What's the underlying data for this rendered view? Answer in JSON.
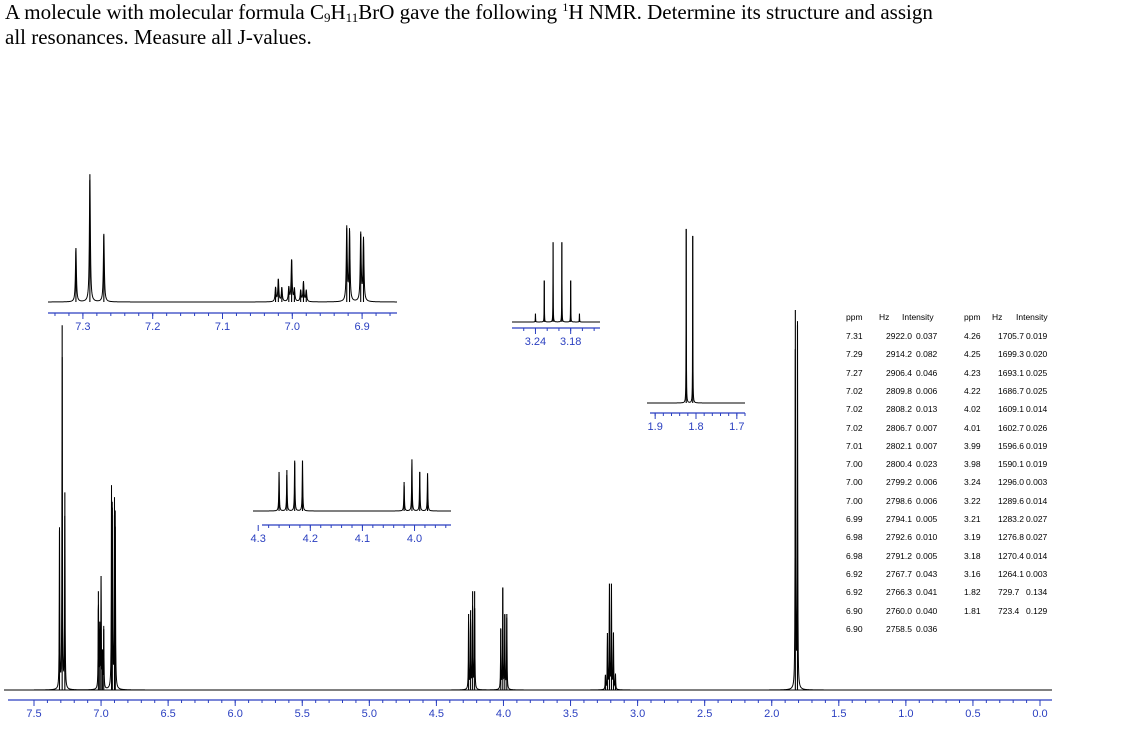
{
  "question": {
    "pre": "A molecule with molecular formula C",
    "c": "9",
    "h_label": "H",
    "h": "11",
    "tail": "BrO gave the following ",
    "sup": "1",
    "nmr": "H NMR.  Determine its structure and assign",
    "line2": "all resonances.  Measure all J-values."
  },
  "peak_table": {
    "headers": [
      "ppm",
      "Hz",
      "Intensity"
    ],
    "left": [
      [
        "7.31",
        "2922.0",
        "0.037"
      ],
      [
        "7.29",
        "2914.2",
        "0.082"
      ],
      [
        "7.27",
        "2906.4",
        "0.046"
      ],
      [
        "7.02",
        "2809.8",
        "0.006"
      ],
      [
        "7.02",
        "2808.2",
        "0.013"
      ],
      [
        "7.02",
        "2806.7",
        "0.007"
      ],
      [
        "7.01",
        "2802.1",
        "0.007"
      ],
      [
        "7.00",
        "2800.4",
        "0.023"
      ],
      [
        "7.00",
        "2799.2",
        "0.006"
      ],
      [
        "7.00",
        "2798.6",
        "0.006"
      ],
      [
        "6.99",
        "2794.1",
        "0.005"
      ],
      [
        "6.98",
        "2792.6",
        "0.010"
      ],
      [
        "6.98",
        "2791.2",
        "0.005"
      ],
      [
        "6.92",
        "2767.7",
        "0.043"
      ],
      [
        "6.92",
        "2766.3",
        "0.041"
      ],
      [
        "6.90",
        "2760.0",
        "0.040"
      ],
      [
        "6.90",
        "2758.5",
        "0.036"
      ]
    ],
    "right": [
      [
        "4.26",
        "1705.7",
        "0.019"
      ],
      [
        "4.25",
        "1699.3",
        "0.020"
      ],
      [
        "4.23",
        "1693.1",
        "0.025"
      ],
      [
        "4.22",
        "1686.7",
        "0.025"
      ],
      [
        "4.02",
        "1609.1",
        "0.014"
      ],
      [
        "4.01",
        "1602.7",
        "0.026"
      ],
      [
        "3.99",
        "1596.6",
        "0.019"
      ],
      [
        "3.98",
        "1590.1",
        "0.019"
      ],
      [
        "3.24",
        "1296.0",
        "0.003"
      ],
      [
        "3.22",
        "1289.6",
        "0.014"
      ],
      [
        "3.21",
        "1283.2",
        "0.027"
      ],
      [
        "3.19",
        "1276.8",
        "0.027"
      ],
      [
        "3.18",
        "1270.4",
        "0.014"
      ],
      [
        "3.16",
        "1264.1",
        "0.003"
      ],
      [
        "1.82",
        "729.7",
        "0.134"
      ],
      [
        "1.81",
        "723.4",
        "0.129"
      ]
    ]
  },
  "chart_data": {
    "type": "line",
    "main": {
      "xlim": [
        7.5,
        0.0
      ],
      "ticks": [
        "7.5",
        "7.0",
        "6.5",
        "6.0",
        "5.5",
        "5.0",
        "4.5",
        "4.0",
        "3.5",
        "3.0",
        "2.5",
        "2.0",
        "1.5",
        "1.0",
        "0.5",
        "0.0"
      ],
      "peaks": [
        {
          "ppm": 7.31,
          "h": 0.42
        },
        {
          "ppm": 7.29,
          "h": 0.96
        },
        {
          "ppm": 7.27,
          "h": 0.52
        },
        {
          "ppm": 7.02,
          "h": 0.26
        },
        {
          "ppm": 7.01,
          "h": 0.16
        },
        {
          "ppm": 7.0,
          "h": 0.3
        },
        {
          "ppm": 6.99,
          "h": 0.1
        },
        {
          "ppm": 6.98,
          "h": 0.16
        },
        {
          "ppm": 6.922,
          "h": 0.5
        },
        {
          "ppm": 6.916,
          "h": 0.48
        },
        {
          "ppm": 6.9,
          "h": 0.46
        },
        {
          "ppm": 6.894,
          "h": 0.43
        },
        {
          "ppm": 4.26,
          "h": 0.2
        },
        {
          "ppm": 4.245,
          "h": 0.21
        },
        {
          "ppm": 4.23,
          "h": 0.26
        },
        {
          "ppm": 4.215,
          "h": 0.26
        },
        {
          "ppm": 4.02,
          "h": 0.16
        },
        {
          "ppm": 4.005,
          "h": 0.27
        },
        {
          "ppm": 3.99,
          "h": 0.2
        },
        {
          "ppm": 3.975,
          "h": 0.2
        },
        {
          "ppm": 3.24,
          "h": 0.04
        },
        {
          "ppm": 3.225,
          "h": 0.15
        },
        {
          "ppm": 3.21,
          "h": 0.28
        },
        {
          "ppm": 3.195,
          "h": 0.28
        },
        {
          "ppm": 3.18,
          "h": 0.15
        },
        {
          "ppm": 3.165,
          "h": 0.04
        },
        {
          "ppm": 1.824,
          "h": 1.0
        },
        {
          "ppm": 1.808,
          "h": 0.96
        }
      ]
    },
    "insets": [
      {
        "xlim": [
          7.35,
          6.85
        ],
        "ticks": [
          "7.3",
          "7.2",
          "7.1",
          "7.0",
          "6.9"
        ],
        "peaks": [
          {
            "ppm": 7.31,
            "h": 0.38
          },
          {
            "ppm": 7.29,
            "h": 0.9
          },
          {
            "ppm": 7.27,
            "h": 0.48
          },
          {
            "ppm": 7.024,
            "h": 0.1
          },
          {
            "ppm": 7.02,
            "h": 0.16
          },
          {
            "ppm": 7.015,
            "h": 0.1
          },
          {
            "ppm": 7.005,
            "h": 0.1
          },
          {
            "ppm": 7.001,
            "h": 0.3
          },
          {
            "ppm": 6.997,
            "h": 0.09
          },
          {
            "ppm": 6.988,
            "h": 0.08
          },
          {
            "ppm": 6.984,
            "h": 0.14
          },
          {
            "ppm": 6.98,
            "h": 0.08
          },
          {
            "ppm": 6.922,
            "h": 0.52
          },
          {
            "ppm": 6.918,
            "h": 0.5
          },
          {
            "ppm": 6.902,
            "h": 0.48
          },
          {
            "ppm": 6.898,
            "h": 0.44
          }
        ]
      },
      {
        "xlim": [
          3.28,
          3.13
        ],
        "ticks": [
          "3.24",
          "3.18"
        ],
        "peaks": [
          {
            "ppm": 3.24,
            "h": 0.1
          },
          {
            "ppm": 3.225,
            "h": 0.5
          },
          {
            "ppm": 3.21,
            "h": 0.96
          },
          {
            "ppm": 3.195,
            "h": 0.96
          },
          {
            "ppm": 3.18,
            "h": 0.5
          },
          {
            "ppm": 3.165,
            "h": 0.1
          }
        ]
      },
      {
        "xlim": [
          1.92,
          1.68
        ],
        "ticks": [
          "1.9",
          "1.8",
          "1.7"
        ],
        "peaks": [
          {
            "ppm": 1.824,
            "h": 1.0
          },
          {
            "ppm": 1.808,
            "h": 0.96
          }
        ]
      },
      {
        "xlim": [
          4.31,
          3.93
        ],
        "ticks": [
          "4.3",
          "4.2",
          "4.1",
          "4.0"
        ],
        "peaks": [
          {
            "ppm": 4.26,
            "h": 0.62
          },
          {
            "ppm": 4.245,
            "h": 0.65
          },
          {
            "ppm": 4.23,
            "h": 0.8
          },
          {
            "ppm": 4.215,
            "h": 0.8
          },
          {
            "ppm": 4.02,
            "h": 0.46
          },
          {
            "ppm": 4.005,
            "h": 0.82
          },
          {
            "ppm": 3.99,
            "h": 0.62
          },
          {
            "ppm": 3.975,
            "h": 0.6
          }
        ]
      }
    ]
  }
}
